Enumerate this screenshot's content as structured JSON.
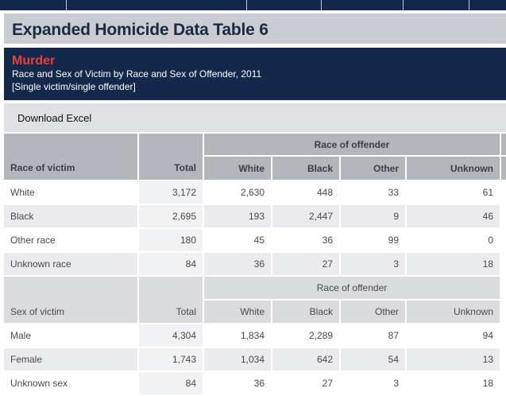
{
  "page_title": "Expanded Homicide Data Table 6",
  "banner": {
    "heading": "Murder",
    "subtitle": "Race and Sex of Victim by Race and Sex of Offender, 2011",
    "note": "[Single victim/single offender]"
  },
  "download_label": "Download Excel",
  "colors": {
    "navy": "#13284a",
    "accent_red": "#e8413d",
    "header_gray": "#b3b6bb"
  },
  "race_table": {
    "group_header": "Race of offender",
    "row_header": "Race of victim",
    "columns": [
      "Total",
      "White",
      "Black",
      "Other",
      "Unknown"
    ],
    "rows": [
      {
        "label": "White",
        "values": [
          "3,172",
          "2,630",
          "448",
          "33",
          "61"
        ]
      },
      {
        "label": "Black",
        "values": [
          "2,695",
          "193",
          "2,447",
          "9",
          "46"
        ]
      },
      {
        "label": "Other race",
        "values": [
          "180",
          "45",
          "36",
          "99",
          "0"
        ]
      },
      {
        "label": "Unknown race",
        "values": [
          "84",
          "36",
          "27",
          "3",
          "18"
        ]
      }
    ]
  },
  "sex_table": {
    "group_header": "Race of offender",
    "row_header": "Sex of victim",
    "columns": [
      "Total",
      "White",
      "Black",
      "Other",
      "Unknown"
    ],
    "rows": [
      {
        "label": "Male",
        "values": [
          "4,304",
          "1,834",
          "2,289",
          "87",
          "94"
        ]
      },
      {
        "label": "Female",
        "values": [
          "1,743",
          "1,034",
          "642",
          "54",
          "13"
        ]
      },
      {
        "label": "Unknown sex",
        "values": [
          "84",
          "36",
          "27",
          "3",
          "18"
        ]
      }
    ]
  }
}
